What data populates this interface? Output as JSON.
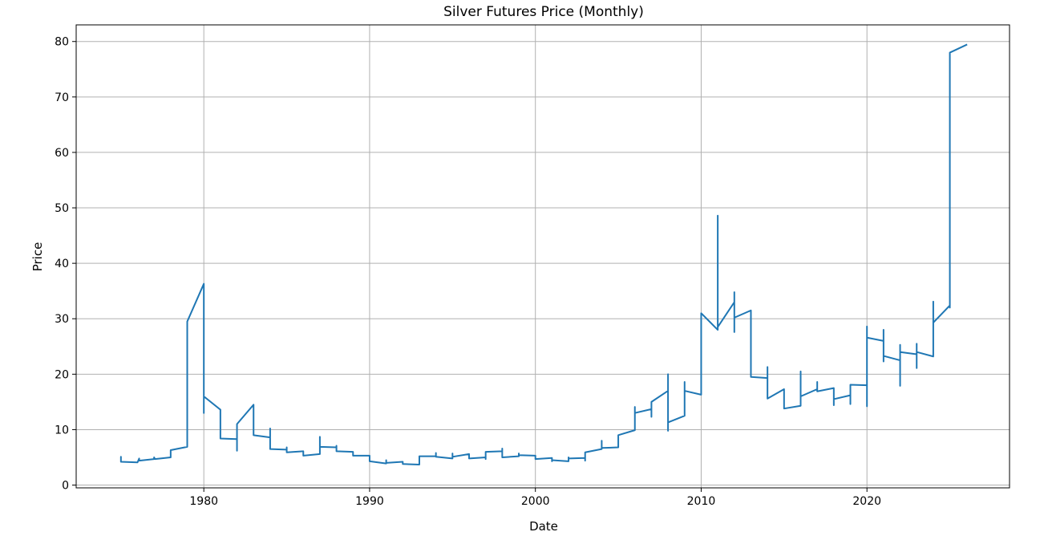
{
  "chart_data": {
    "type": "line",
    "title": "Silver Futures Price (Monthly)",
    "xlabel": "Date",
    "ylabel": "Price",
    "xlim": [
      1972.3,
      2028.6
    ],
    "ylim": [
      -0.5,
      83
    ],
    "xticks": [
      1980,
      1990,
      2000,
      2010,
      2020
    ],
    "yticks": [
      0,
      10,
      20,
      30,
      40,
      50,
      60,
      70,
      80
    ],
    "grid": true,
    "line_color": "#1f77b4",
    "series": [
      {
        "name": "Silver Futures Price",
        "points": [
          [
            1975.0,
            4.4
          ],
          [
            1975.0,
            5.1
          ],
          [
            1975.0,
            4.2
          ],
          [
            1976.0,
            4.1
          ],
          [
            1976.1,
            4.8
          ],
          [
            1976.1,
            4.4
          ],
          [
            1977.0,
            4.7
          ],
          [
            1977.0,
            5.0
          ],
          [
            1977.05,
            4.7
          ],
          [
            1978.0,
            5.0
          ],
          [
            1978.0,
            6.3
          ],
          [
            1979.0,
            6.9
          ],
          [
            1979.0,
            29.5
          ],
          [
            1980.0,
            36.3
          ],
          [
            1980.0,
            13.0
          ],
          [
            1980.0,
            21.5
          ],
          [
            1980.0,
            16.0
          ],
          [
            1981.0,
            13.6
          ],
          [
            1981.0,
            8.4
          ],
          [
            1982.0,
            8.3
          ],
          [
            1982.0,
            6.2
          ],
          [
            1982.0,
            11.0
          ],
          [
            1983.0,
            14.5
          ],
          [
            1983.0,
            12.0
          ],
          [
            1983.0,
            9.0
          ],
          [
            1984.0,
            8.6
          ],
          [
            1984.0,
            10.2
          ],
          [
            1984.0,
            6.5
          ],
          [
            1985.0,
            6.4
          ],
          [
            1985.0,
            6.8
          ],
          [
            1985.0,
            5.9
          ],
          [
            1986.0,
            6.1
          ],
          [
            1986.0,
            5.3
          ],
          [
            1987.0,
            5.6
          ],
          [
            1987.0,
            8.7
          ],
          [
            1987.0,
            6.9
          ],
          [
            1988.0,
            6.8
          ],
          [
            1988.0,
            7.1
          ],
          [
            1988.0,
            6.1
          ],
          [
            1989.0,
            6.0
          ],
          [
            1989.0,
            5.3
          ],
          [
            1990.0,
            5.3
          ],
          [
            1990.0,
            4.3
          ],
          [
            1991.0,
            3.9
          ],
          [
            1991.0,
            4.5
          ],
          [
            1991.0,
            4.0
          ],
          [
            1992.0,
            4.2
          ],
          [
            1992.0,
            3.8
          ],
          [
            1993.0,
            3.7
          ],
          [
            1993.0,
            5.2
          ],
          [
            1994.0,
            5.2
          ],
          [
            1994.0,
            5.8
          ],
          [
            1994.0,
            5.1
          ],
          [
            1995.0,
            4.8
          ],
          [
            1995.0,
            5.7
          ],
          [
            1995.0,
            5.1
          ],
          [
            1996.0,
            5.6
          ],
          [
            1996.0,
            4.8
          ],
          [
            1997.0,
            5.0
          ],
          [
            1997.0,
            4.7
          ],
          [
            1997.0,
            6.0
          ],
          [
            1998.0,
            6.1
          ],
          [
            1998.0,
            6.6
          ],
          [
            1998.0,
            5.0
          ],
          [
            1999.0,
            5.2
          ],
          [
            1999.0,
            5.7
          ],
          [
            1999.0,
            5.4
          ],
          [
            2000.0,
            5.3
          ],
          [
            2000.0,
            4.7
          ],
          [
            2001.0,
            4.9
          ],
          [
            2001.0,
            4.3
          ],
          [
            2001.0,
            4.5
          ],
          [
            2002.0,
            4.3
          ],
          [
            2002.0,
            5.0
          ],
          [
            2002.0,
            4.8
          ],
          [
            2003.0,
            4.9
          ],
          [
            2003.0,
            4.4
          ],
          [
            2003.0,
            5.9
          ],
          [
            2004.0,
            6.5
          ],
          [
            2004.0,
            8.0
          ],
          [
            2004.0,
            6.7
          ],
          [
            2005.0,
            6.8
          ],
          [
            2005.0,
            9.0
          ],
          [
            2006.0,
            9.9
          ],
          [
            2006.0,
            14.1
          ],
          [
            2006.0,
            13.0
          ],
          [
            2007.0,
            13.7
          ],
          [
            2007.0,
            12.3
          ],
          [
            2007.0,
            15.0
          ],
          [
            2008.0,
            17.0
          ],
          [
            2008.0,
            20.0
          ],
          [
            2008.0,
            9.8
          ],
          [
            2008.0,
            11.3
          ],
          [
            2009.0,
            12.5
          ],
          [
            2009.0,
            18.6
          ],
          [
            2009.0,
            17.0
          ],
          [
            2010.0,
            16.3
          ],
          [
            2010.0,
            18.5
          ],
          [
            2010.0,
            31.0
          ],
          [
            2011.0,
            28.0
          ],
          [
            2011.0,
            48.6
          ],
          [
            2011.0,
            35.0
          ],
          [
            2011.0,
            42.0
          ],
          [
            2011.0,
            28.5
          ],
          [
            2012.0,
            33.0
          ],
          [
            2012.0,
            34.8
          ],
          [
            2012.0,
            27.6
          ],
          [
            2012.0,
            30.2
          ],
          [
            2013.0,
            31.5
          ],
          [
            2013.0,
            23.8
          ],
          [
            2013.0,
            19.5
          ],
          [
            2014.0,
            19.3
          ],
          [
            2014.0,
            21.3
          ],
          [
            2014.0,
            15.6
          ],
          [
            2015.0,
            17.3
          ],
          [
            2015.0,
            13.8
          ],
          [
            2016.0,
            14.3
          ],
          [
            2016.0,
            20.5
          ],
          [
            2016.0,
            16.0
          ],
          [
            2017.0,
            17.3
          ],
          [
            2017.0,
            18.6
          ],
          [
            2017.0,
            16.9
          ],
          [
            2018.0,
            17.5
          ],
          [
            2018.0,
            14.4
          ],
          [
            2018.0,
            15.5
          ],
          [
            2019.0,
            16.2
          ],
          [
            2019.0,
            14.6
          ],
          [
            2019.0,
            18.1
          ],
          [
            2020.0,
            18.0
          ],
          [
            2020.0,
            14.2
          ],
          [
            2020.0,
            28.6
          ],
          [
            2020.0,
            22.7
          ],
          [
            2020.0,
            26.6
          ],
          [
            2021.0,
            26.0
          ],
          [
            2021.0,
            28.0
          ],
          [
            2021.0,
            22.3
          ],
          [
            2021.0,
            23.3
          ],
          [
            2022.0,
            22.5
          ],
          [
            2022.0,
            17.9
          ],
          [
            2022.0,
            25.3
          ],
          [
            2022.0,
            24.0
          ],
          [
            2023.0,
            23.6
          ],
          [
            2023.0,
            21.1
          ],
          [
            2023.0,
            25.5
          ],
          [
            2023.0,
            24.0
          ],
          [
            2024.0,
            23.2
          ],
          [
            2024.0,
            33.1
          ],
          [
            2024.0,
            29.3
          ],
          [
            2025.0,
            32.4
          ],
          [
            2025.0,
            34.5
          ],
          [
            2025.0,
            32.0
          ],
          [
            2025.0,
            78.0
          ],
          [
            2026.0,
            79.4
          ]
        ]
      }
    ]
  }
}
